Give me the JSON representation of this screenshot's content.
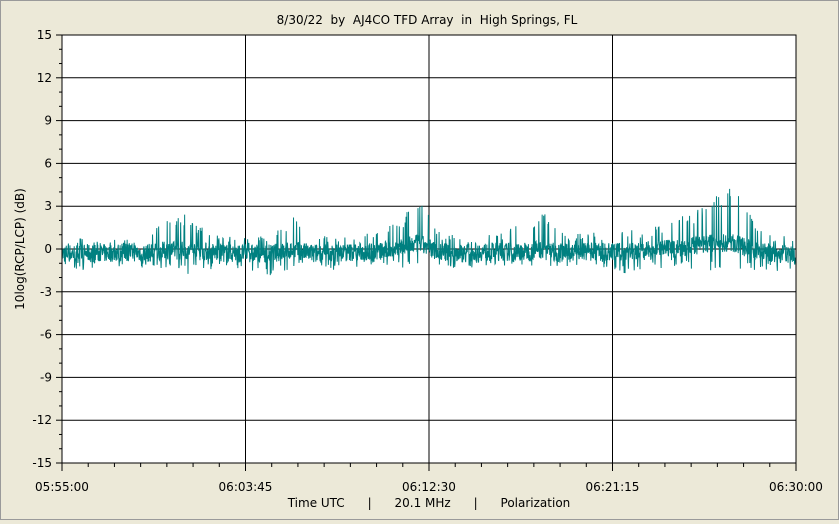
{
  "chart_data": {
    "type": "line",
    "title": "8/30/22  by  AJ4CO TFD Array  in  High Springs, FL",
    "xlabel": "Time UTC      |      20.1 MHz      |      Polarization",
    "ylabel": "10log(RCP/LCP) (dB)",
    "xlim": [
      "05:55:00",
      "06:30:00"
    ],
    "ylim": [
      -15,
      15
    ],
    "y_ticks": [
      15,
      12,
      9,
      6,
      3,
      0,
      -3,
      -6,
      -9,
      -12,
      -15
    ],
    "x_ticks": [
      "05:55:00",
      "06:03:45",
      "06:12:30",
      "06:21:15",
      "06:30:00"
    ],
    "grid": true,
    "series_color": "#008080",
    "series": [
      {
        "x": [
          "05:55:00",
          "05:56:00",
          "05:57:00",
          "05:58:00",
          "05:59:00",
          "06:00:00",
          "06:01:00",
          "06:02:00",
          "06:03:00",
          "06:04:00",
          "06:05:00",
          "06:06:00",
          "06:07:00",
          "06:08:00",
          "06:09:00",
          "06:10:00",
          "06:11:00",
          "06:12:00",
          "06:13:00",
          "06:14:00",
          "06:15:00",
          "06:16:00",
          "06:17:00",
          "06:18:00",
          "06:19:00",
          "06:20:00",
          "06:21:00",
          "06:22:00",
          "06:23:00",
          "06:24:00",
          "06:25:00",
          "06:26:00",
          "06:27:00",
          "06:28:00",
          "06:29:00",
          "06:30:00"
        ],
        "y_max": [
          0.6,
          0.8,
          0.9,
          0.7,
          0.8,
          2.3,
          2.5,
          1.2,
          0.9,
          0.8,
          1.0,
          2.5,
          1.0,
          0.9,
          1.1,
          1.5,
          2.0,
          3.6,
          1.2,
          0.9,
          1.0,
          1.2,
          2.0,
          3.0,
          1.0,
          1.2,
          1.1,
          1.3,
          1.5,
          2.0,
          2.5,
          3.5,
          4.5,
          2.0,
          1.0,
          0.8
        ],
        "y_min": [
          -1.2,
          -1.5,
          -1.3,
          -1.2,
          -1.4,
          -1.6,
          -1.8,
          -1.5,
          -1.3,
          -1.6,
          -1.9,
          -1.4,
          -1.2,
          -1.5,
          -1.3,
          -1.2,
          -1.4,
          -1.0,
          -1.3,
          -1.5,
          -1.4,
          -1.2,
          -1.3,
          -1.1,
          -1.4,
          -1.2,
          -1.3,
          -1.9,
          -1.5,
          -1.2,
          -1.4,
          -1.6,
          -1.7,
          -1.5,
          -1.6,
          -1.5
        ],
        "y_mean": [
          -0.3,
          -0.3,
          -0.3,
          -0.2,
          -0.3,
          -0.1,
          -0.1,
          -0.2,
          -0.3,
          -0.3,
          -0.3,
          -0.1,
          -0.3,
          -0.3,
          -0.2,
          -0.2,
          0.0,
          0.4,
          -0.2,
          -0.3,
          -0.2,
          -0.2,
          -0.2,
          0.0,
          -0.3,
          -0.2,
          -0.2,
          -0.2,
          -0.1,
          0.0,
          0.2,
          0.4,
          0.4,
          -0.1,
          -0.3,
          -0.4
        ]
      }
    ]
  }
}
